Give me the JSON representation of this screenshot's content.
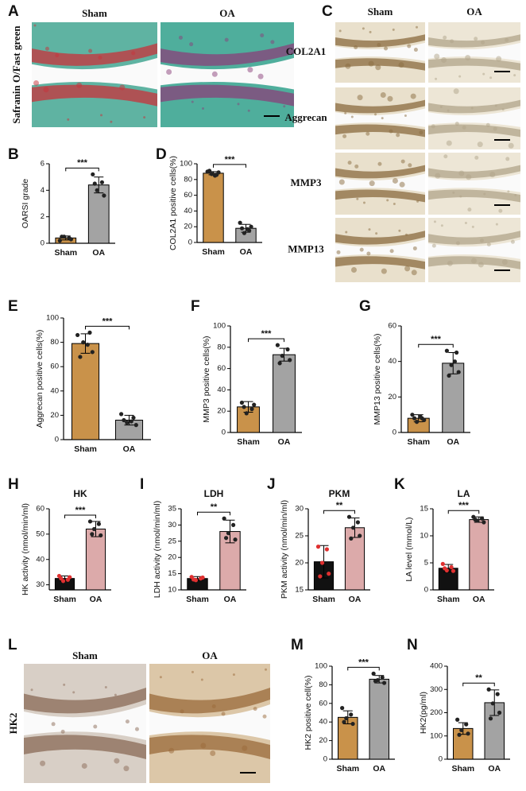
{
  "image_panels": [
    {
      "panel": "A",
      "columns": [
        "Sham",
        "OA"
      ],
      "rows": [
        "Safranin O/Fast green"
      ]
    },
    {
      "panel": "C",
      "columns": [
        "Sham",
        "OA"
      ],
      "rows": [
        "COL2A1",
        "Aggrecan",
        "MMP3",
        "MMP13"
      ]
    },
    {
      "panel": "L",
      "columns": [
        "Sham",
        "OA"
      ],
      "rows": [
        "HK2"
      ]
    }
  ],
  "chart_data": [
    {
      "type": "bar",
      "panel": "B",
      "ylabel": "OARSI grade",
      "categories": [
        "Sham",
        "OA"
      ],
      "values": [
        0.4,
        4.4
      ],
      "errors": [
        0.15,
        0.6
      ],
      "points": [
        [
          0.2,
          0.4,
          0.5,
          0.3,
          0.5
        ],
        [
          5.2,
          4.6,
          4.0,
          3.6,
          4.5
        ]
      ],
      "colors": [
        "#c9924a",
        "#a3a3a3"
      ],
      "ylim": [
        0,
        6
      ],
      "yticks": [
        0,
        2,
        4,
        6
      ],
      "significance": "***"
    },
    {
      "type": "bar",
      "panel": "D",
      "ylabel": "COL2A1 positive cells(%)",
      "categories": [
        "Sham",
        "OA"
      ],
      "values": [
        88,
        18
      ],
      "errors": [
        2,
        5
      ],
      "points": [
        [
          90,
          86,
          87,
          89,
          91,
          85
        ],
        [
          25,
          15,
          12,
          20,
          18,
          17
        ]
      ],
      "colors": [
        "#c9924a",
        "#a3a3a3"
      ],
      "ylim": [
        0,
        100
      ],
      "yticks": [
        0,
        20,
        40,
        60,
        80,
        100
      ],
      "significance": "***"
    },
    {
      "type": "bar",
      "panel": "E",
      "ylabel": "Aggrecan positive cells(%)",
      "categories": [
        "Sham",
        "OA"
      ],
      "values": [
        79,
        16
      ],
      "errors": [
        8,
        4
      ],
      "points": [
        [
          86,
          88,
          80,
          72,
          68,
          78
        ],
        [
          21,
          18,
          14,
          12,
          16,
          15
        ]
      ],
      "colors": [
        "#c9924a",
        "#a3a3a3"
      ],
      "ylim": [
        0,
        100
      ],
      "yticks": [
        0,
        20,
        40,
        60,
        80,
        100
      ],
      "significance": "***"
    },
    {
      "type": "bar",
      "panel": "F",
      "ylabel": "MMP3 positive cells(%)",
      "categories": [
        "Sham",
        "OA"
      ],
      "values": [
        24,
        73
      ],
      "errors": [
        5,
        6
      ],
      "points": [
        [
          28,
          22,
          18,
          26,
          24
        ],
        [
          82,
          78,
          72,
          68,
          65
        ]
      ],
      "colors": [
        "#c9924a",
        "#a3a3a3"
      ],
      "ylim": [
        0,
        100
      ],
      "yticks": [
        0,
        20,
        40,
        60,
        80,
        100
      ],
      "significance": "***"
    },
    {
      "type": "bar",
      "panel": "G",
      "ylabel": "MMP13 positive cells(%)",
      "categories": [
        "Sham",
        "OA"
      ],
      "values": [
        8,
        39
      ],
      "errors": [
        2,
        6
      ],
      "points": [
        [
          10,
          8,
          6,
          7,
          8,
          9
        ],
        [
          46,
          45,
          38,
          34,
          32,
          40
        ]
      ],
      "colors": [
        "#c9924a",
        "#a3a3a3"
      ],
      "ylim": [
        0,
        60
      ],
      "yticks": [
        0,
        20,
        40,
        60
      ],
      "significance": "***"
    },
    {
      "type": "bar",
      "panel": "H",
      "title": "HK",
      "ylabel": "HK activity (nmol/min/ml)",
      "categories": [
        "Sham",
        "OA"
      ],
      "values": [
        32.5,
        52
      ],
      "errors": [
        1,
        3
      ],
      "points": [
        [
          33.5,
          32,
          31.5,
          33,
          32.5
        ],
        [
          55,
          54,
          52,
          49.5,
          50
        ]
      ],
      "colors": [
        "#111111",
        "#dcaaaa"
      ],
      "ylim": [
        28,
        60
      ],
      "yticks": [
        30,
        40,
        50,
        60
      ],
      "significance": "***"
    },
    {
      "type": "bar",
      "panel": "I",
      "title": "LDH",
      "ylabel": "LDH activity (nmol/min/ml)",
      "categories": [
        "Sham",
        "OA"
      ],
      "values": [
        13.5,
        28
      ],
      "errors": [
        0.6,
        3.5
      ],
      "points": [
        [
          14,
          13.5,
          13,
          13.8,
          13.2
        ],
        [
          32,
          30,
          27.5,
          25.5,
          26
        ]
      ],
      "colors": [
        "#111111",
        "#dcaaaa"
      ],
      "ylim": [
        10,
        35
      ],
      "yticks": [
        10,
        15,
        20,
        25,
        30,
        35
      ],
      "significance": "**"
    },
    {
      "type": "bar",
      "panel": "J",
      "title": "PKM",
      "ylabel": "PKM activity (nmol/min/ml)",
      "categories": [
        "Sham",
        "OA"
      ],
      "values": [
        20.2,
        26.5
      ],
      "errors": [
        3,
        1.8
      ],
      "points": [
        [
          23,
          22.5,
          20,
          18,
          17.5
        ],
        [
          28.5,
          27.5,
          26.5,
          25,
          24.5
        ]
      ],
      "colors": [
        "#111111",
        "#dcaaaa"
      ],
      "ylim": [
        15,
        30
      ],
      "yticks": [
        15,
        20,
        25,
        30
      ],
      "significance": "**"
    },
    {
      "type": "bar",
      "panel": "K",
      "title": "LA",
      "ylabel": "LA level (mmol/L)",
      "categories": [
        "Sham",
        "OA"
      ],
      "values": [
        4,
        13
      ],
      "errors": [
        0.7,
        0.5
      ],
      "points": [
        [
          4.8,
          4.2,
          3.6,
          3.5,
          4
        ],
        [
          13.5,
          13.2,
          12.8,
          12.5,
          13
        ]
      ],
      "colors": [
        "#111111",
        "#dcaaaa"
      ],
      "ylim": [
        0,
        15
      ],
      "yticks": [
        0,
        5,
        10,
        15
      ],
      "significance": "***"
    },
    {
      "type": "bar",
      "panel": "M",
      "ylabel": "HK2 positive cell(%)",
      "categories": [
        "Sham",
        "OA"
      ],
      "values": [
        45,
        86
      ],
      "errors": [
        7,
        4
      ],
      "points": [
        [
          55,
          48,
          44,
          38,
          40
        ],
        [
          92,
          88,
          85,
          82,
          84
        ]
      ],
      "colors": [
        "#c9924a",
        "#a3a3a3"
      ],
      "ylim": [
        0,
        100
      ],
      "yticks": [
        0,
        20,
        40,
        60,
        80,
        100
      ],
      "significance": "***"
    },
    {
      "type": "bar",
      "panel": "N",
      "ylabel": "HK2(pg/ml)",
      "categories": [
        "Sham",
        "OA"
      ],
      "values": [
        132,
        243
      ],
      "errors": [
        25,
        55
      ],
      "points": [
        [
          170,
          150,
          125,
          110,
          105
        ],
        [
          300,
          280,
          240,
          200,
          175
        ]
      ],
      "colors": [
        "#c9924a",
        "#a3a3a3"
      ],
      "ylim": [
        0,
        400
      ],
      "yticks": [
        0,
        100,
        200,
        300,
        400
      ],
      "significance": "**"
    }
  ]
}
